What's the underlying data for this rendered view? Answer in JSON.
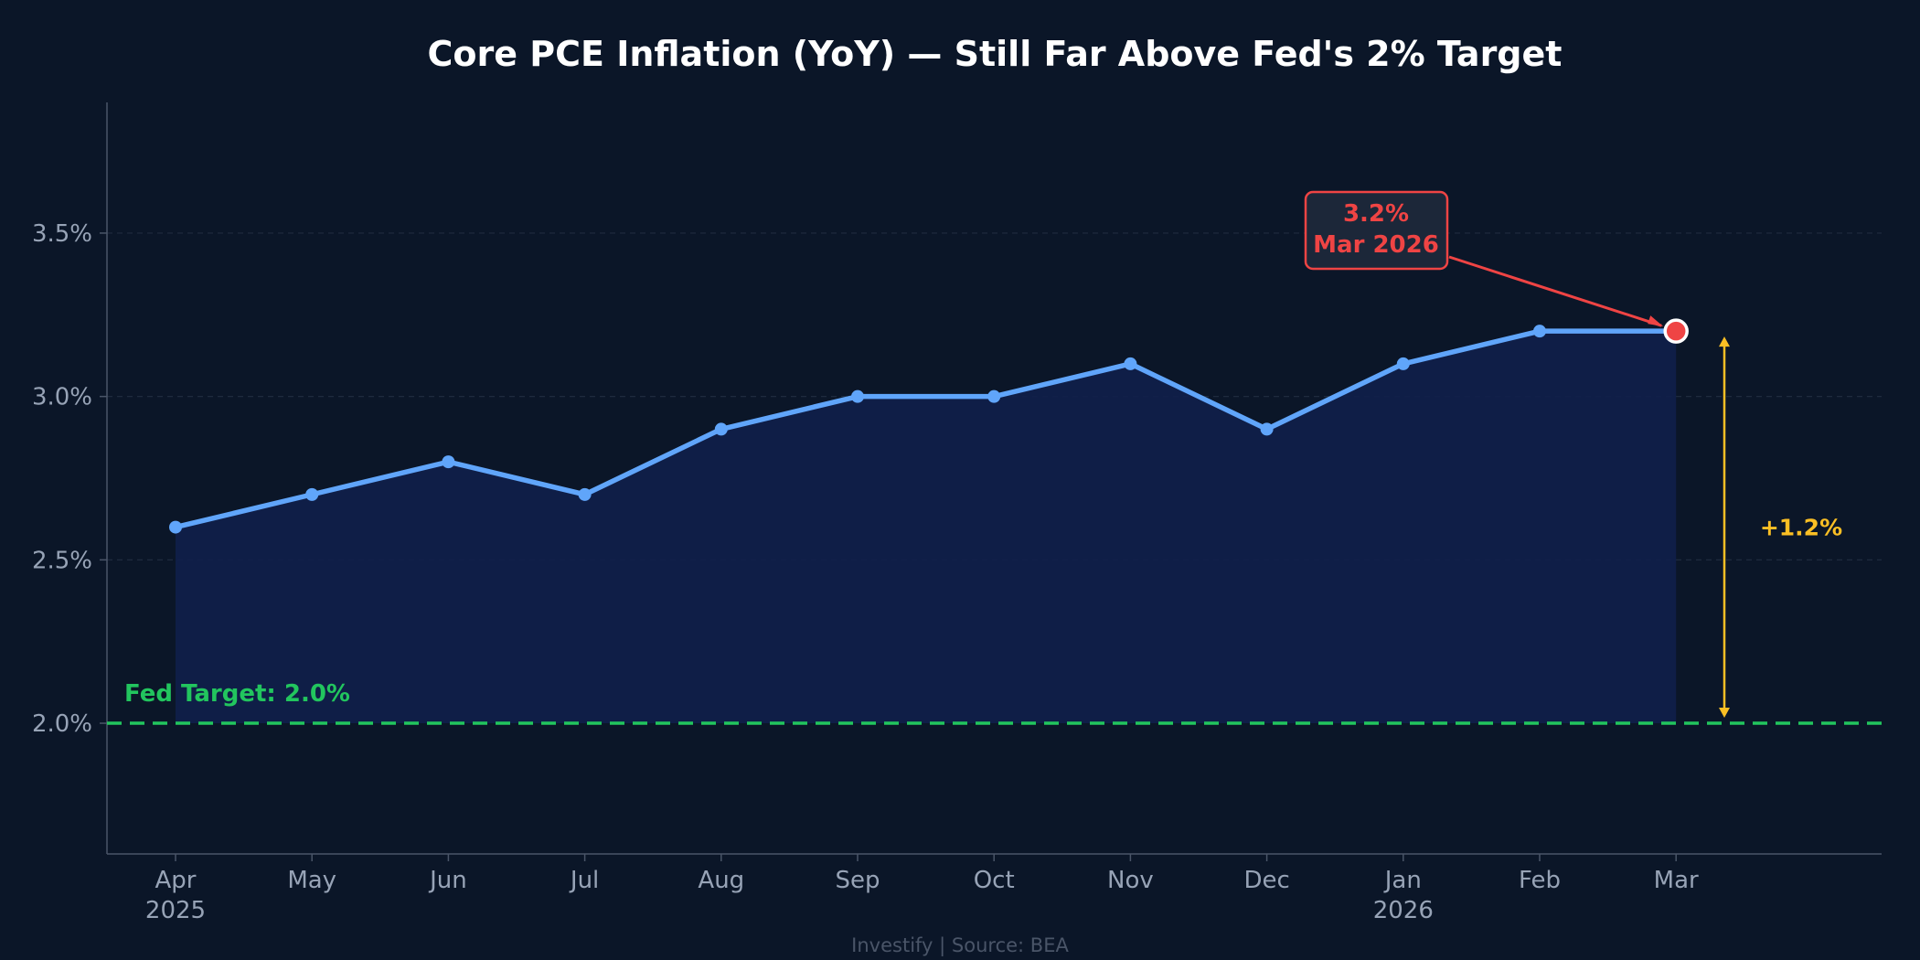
{
  "chart_data": {
    "type": "line",
    "title": "Core PCE Inflation (YoY) — Still Far Above Fed's 2% Target",
    "xlabel": "",
    "ylabel": "",
    "categories": [
      "Apr",
      "May",
      "Jun",
      "Jul",
      "Aug",
      "Sep",
      "Oct",
      "Nov",
      "Dec",
      "Jan",
      "Feb",
      "Mar"
    ],
    "year_labels": [
      "2025",
      "",
      "",
      "",
      "",
      "",
      "",
      "",
      "",
      "2026",
      "",
      ""
    ],
    "series": [
      {
        "name": "",
        "values": [
          2.6,
          2.7,
          2.8,
          2.7,
          2.9,
          3.0,
          3.0,
          3.1,
          2.9,
          3.1,
          3.2,
          3.2
        ],
        "color": "#60a5fa",
        "area_fill": "#0f1f4a"
      }
    ],
    "ylim": [
      1.6,
      3.9
    ],
    "yticks": [
      2.0,
      2.5,
      3.0,
      3.5
    ],
    "ytick_labels": [
      "2.0%",
      "2.5%",
      "3.0%",
      "3.5%"
    ],
    "grid": true,
    "reference_line": {
      "value": 2.0,
      "label": "Fed Target: 2.0%",
      "color": "#22c55e",
      "style": "dashed"
    },
    "callout": {
      "line1": "3.2%",
      "line2": "Mar 2026",
      "color": "#ef4444"
    },
    "gap_annotation": {
      "label": "+1.2%",
      "from": 2.0,
      "to": 3.2,
      "color": "#fbbf24"
    },
    "footer": "Investify | Source: BEA"
  },
  "colors": {
    "background": "#0b1628",
    "axis": "#4a5568",
    "grid": "#1f2b3e",
    "tick_text": "#97a3b6",
    "title": "#ffffff",
    "marker_highlight": "#ef4444",
    "callout_bg": "#1c2739"
  }
}
